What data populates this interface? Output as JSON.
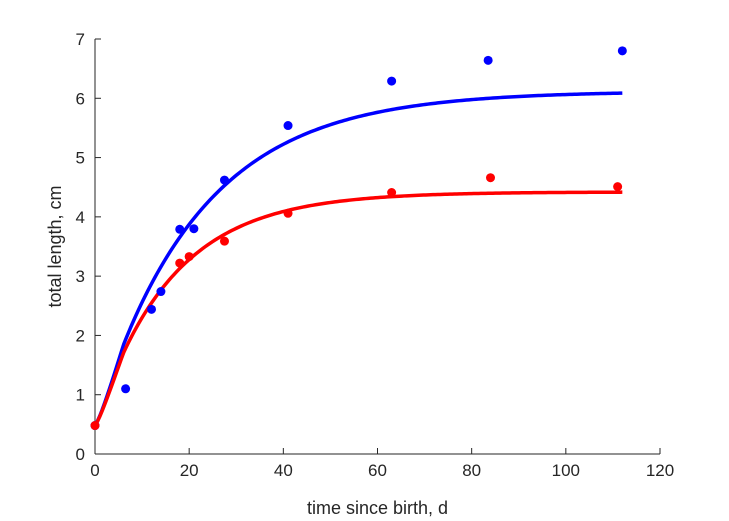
{
  "chart_data": {
    "type": "scatter",
    "title": "",
    "xlabel": "time since birth, d",
    "ylabel": "total length, cm",
    "xlim": [
      0,
      120
    ],
    "ylim": [
      0,
      7
    ],
    "xticks": [
      0,
      20,
      40,
      60,
      80,
      100,
      120
    ],
    "yticks": [
      0,
      1,
      2,
      3,
      4,
      5,
      6,
      7
    ],
    "grid": false,
    "series": [
      {
        "color": "#0000ff",
        "points": [
          [
            0,
            0.48
          ],
          [
            6.5,
            1.1
          ],
          [
            12,
            2.44
          ],
          [
            14,
            2.74
          ],
          [
            18,
            3.79
          ],
          [
            21,
            3.8
          ],
          [
            27.5,
            4.62
          ],
          [
            41,
            5.54
          ],
          [
            63,
            6.29
          ],
          [
            83.5,
            6.64
          ],
          [
            112,
            6.8
          ]
        ],
        "fit": {
          "L0": 0.48,
          "Linf": 6.12,
          "k": 0.046,
          "x_end": 112
        }
      },
      {
        "color": "#ff0000",
        "points": [
          [
            0,
            0.48
          ],
          [
            18,
            3.22
          ],
          [
            20,
            3.33
          ],
          [
            27.5,
            3.59
          ],
          [
            41,
            4.06
          ],
          [
            63,
            4.41
          ],
          [
            84,
            4.66
          ],
          [
            111,
            4.51
          ]
        ],
        "fit": {
          "L0": 0.48,
          "Linf": 4.42,
          "k": 0.062,
          "x_end": 112
        }
      }
    ]
  }
}
